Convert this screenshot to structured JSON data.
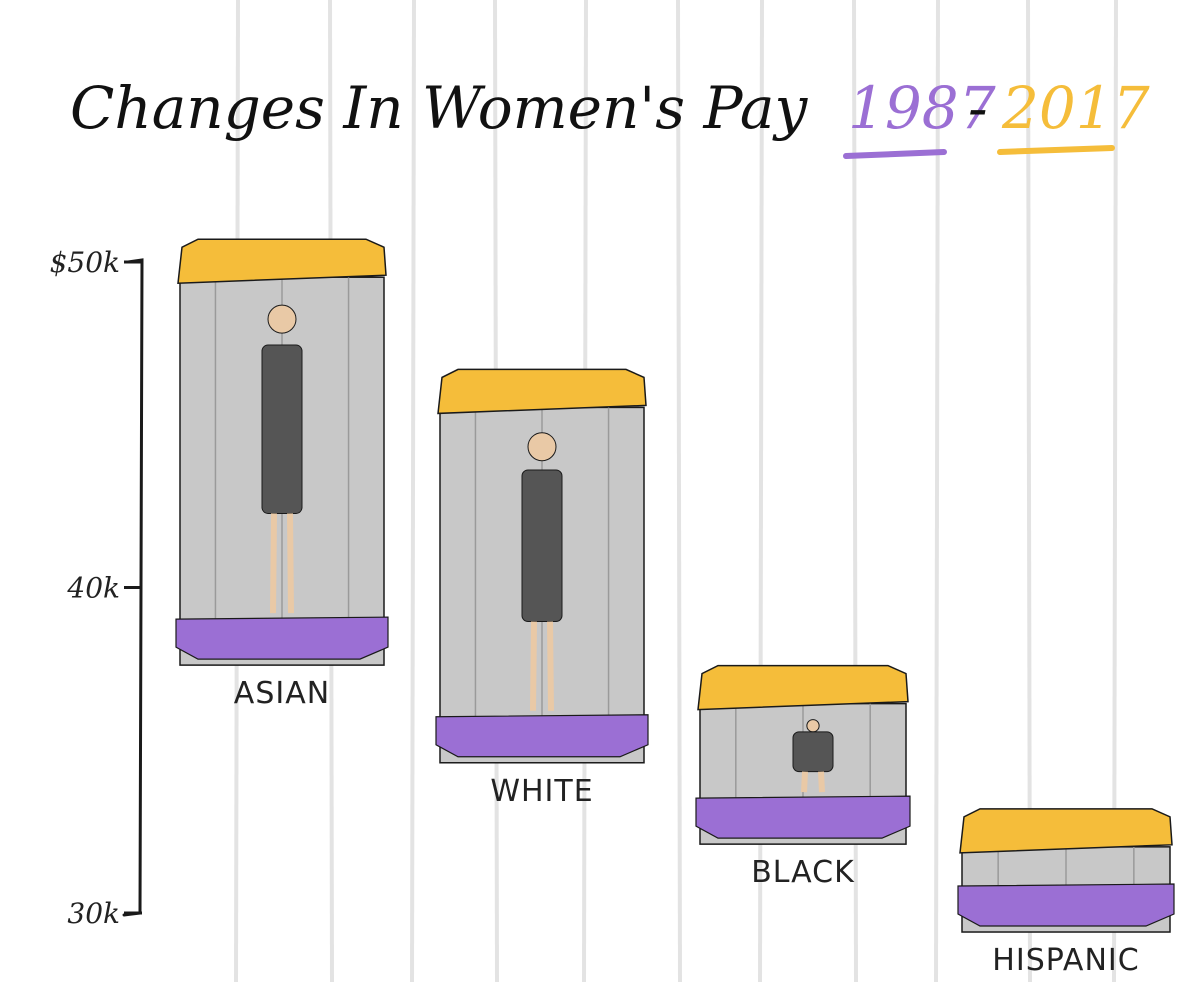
{
  "chart_data": {
    "type": "bar",
    "title": "Changes In Women's Pay",
    "title_year_start": "1987",
    "title_separator": "-",
    "title_year_end": "2017",
    "categories": [
      "ASIAN",
      "WHITE",
      "BLACK",
      "HISPANIC"
    ],
    "series": [
      {
        "name": "1987",
        "values": [
          37.8,
          34.8,
          32.3,
          29.6
        ]
      },
      {
        "name": "2017",
        "values": [
          50.7,
          46.7,
          37.6,
          33.2
        ]
      }
    ],
    "ylim": [
      30,
      50
    ],
    "yticks": [
      {
        "value": 50,
        "label": "$50k"
      },
      {
        "value": 40,
        "label": "40k"
      },
      {
        "value": 30,
        "label": "30k"
      }
    ],
    "grid": "vertical lines",
    "colors": {
      "1987": "#9b6fd4",
      "2017": "#f5bd3a",
      "box": "#c8c8c8",
      "grid": "#e3e3e3",
      "ink": "#1a1a1a"
    }
  }
}
